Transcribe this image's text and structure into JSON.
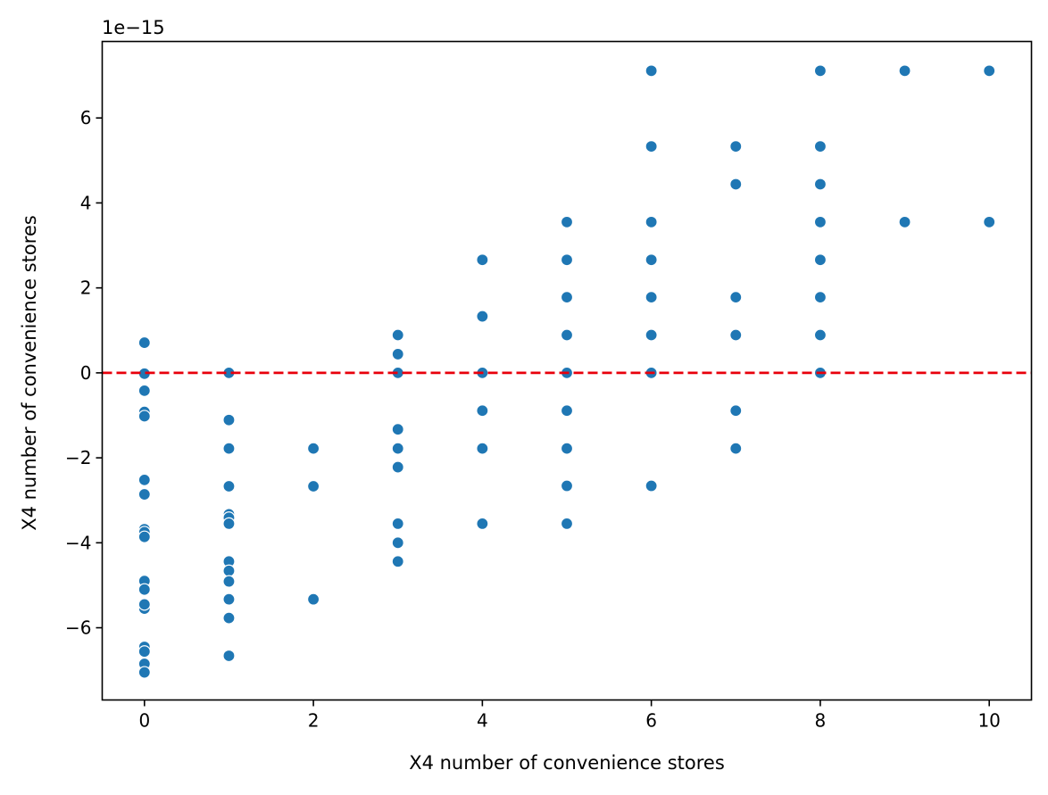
{
  "chart_data": {
    "type": "scatter",
    "title": "",
    "xlabel": "X4 number of convenience stores",
    "ylabel": "X4 number of convenience stores",
    "y_offset_text": "1e−15",
    "xlim": [
      -0.5,
      10.5
    ],
    "ylim": [
      -7.7,
      7.8
    ],
    "x_ticks": [
      0,
      2,
      4,
      6,
      8,
      10
    ],
    "x_tick_labels": [
      "0",
      "2",
      "4",
      "6",
      "8",
      "10"
    ],
    "y_ticks": [
      -6,
      -4,
      -2,
      0,
      2,
      4,
      6
    ],
    "y_tick_labels": [
      "−6",
      "−4",
      "−2",
      "0",
      "2",
      "4",
      "6"
    ],
    "grid": false,
    "reference_line": {
      "y": 0,
      "style": "dashed",
      "color": "#e8000b"
    },
    "marker_color": "#1f77b4",
    "points": [
      [
        0,
        0.71
      ],
      [
        0,
        -0.02
      ],
      [
        0,
        -0.42
      ],
      [
        0,
        -0.92
      ],
      [
        0,
        -1.02
      ],
      [
        0,
        -2.52
      ],
      [
        0,
        -2.86
      ],
      [
        0,
        -3.68
      ],
      [
        0,
        -3.75
      ],
      [
        0,
        -3.86
      ],
      [
        0,
        -4.9
      ],
      [
        0,
        -5.1
      ],
      [
        0,
        -5.55
      ],
      [
        0,
        -5.45
      ],
      [
        0,
        -6.45
      ],
      [
        0,
        -6.56
      ],
      [
        0,
        -6.85
      ],
      [
        0,
        -7.05
      ],
      [
        1,
        0.0
      ],
      [
        1,
        -1.11
      ],
      [
        1,
        -1.78
      ],
      [
        1,
        -2.67
      ],
      [
        1,
        -3.33
      ],
      [
        1,
        -3.41
      ],
      [
        1,
        -3.55
      ],
      [
        1,
        -4.44
      ],
      [
        1,
        -4.66
      ],
      [
        1,
        -4.91
      ],
      [
        1,
        -5.33
      ],
      [
        1,
        -5.77
      ],
      [
        1,
        -6.66
      ],
      [
        2,
        -1.78
      ],
      [
        2,
        -2.67
      ],
      [
        2,
        -5.33
      ],
      [
        3,
        0.89
      ],
      [
        3,
        0.44
      ],
      [
        3,
        0.0
      ],
      [
        3,
        -1.33
      ],
      [
        3,
        -1.78
      ],
      [
        3,
        -2.22
      ],
      [
        3,
        -3.55
      ],
      [
        3,
        -4.0
      ],
      [
        3,
        -4.44
      ],
      [
        4,
        2.66
      ],
      [
        4,
        1.33
      ],
      [
        4,
        0.0
      ],
      [
        4,
        -0.89
      ],
      [
        4,
        -1.78
      ],
      [
        4,
        -3.55
      ],
      [
        5,
        3.55
      ],
      [
        5,
        2.66
      ],
      [
        5,
        1.78
      ],
      [
        5,
        0.89
      ],
      [
        5,
        0.0
      ],
      [
        5,
        -0.89
      ],
      [
        5,
        -1.78
      ],
      [
        5,
        -2.66
      ],
      [
        5,
        -3.55
      ],
      [
        6,
        7.11
      ],
      [
        6,
        5.33
      ],
      [
        6,
        3.55
      ],
      [
        6,
        2.66
      ],
      [
        6,
        1.78
      ],
      [
        6,
        0.89
      ],
      [
        6,
        0.0
      ],
      [
        6,
        -2.66
      ],
      [
        7,
        5.33
      ],
      [
        7,
        4.44
      ],
      [
        7,
        1.78
      ],
      [
        7,
        0.89
      ],
      [
        7,
        -0.89
      ],
      [
        7,
        -1.78
      ],
      [
        8,
        7.11
      ],
      [
        8,
        5.33
      ],
      [
        8,
        4.44
      ],
      [
        8,
        3.55
      ],
      [
        8,
        2.66
      ],
      [
        8,
        1.78
      ],
      [
        8,
        0.89
      ],
      [
        8,
        0.0
      ],
      [
        9,
        7.11
      ],
      [
        9,
        3.55
      ],
      [
        10,
        7.11
      ],
      [
        10,
        3.55
      ]
    ]
  }
}
